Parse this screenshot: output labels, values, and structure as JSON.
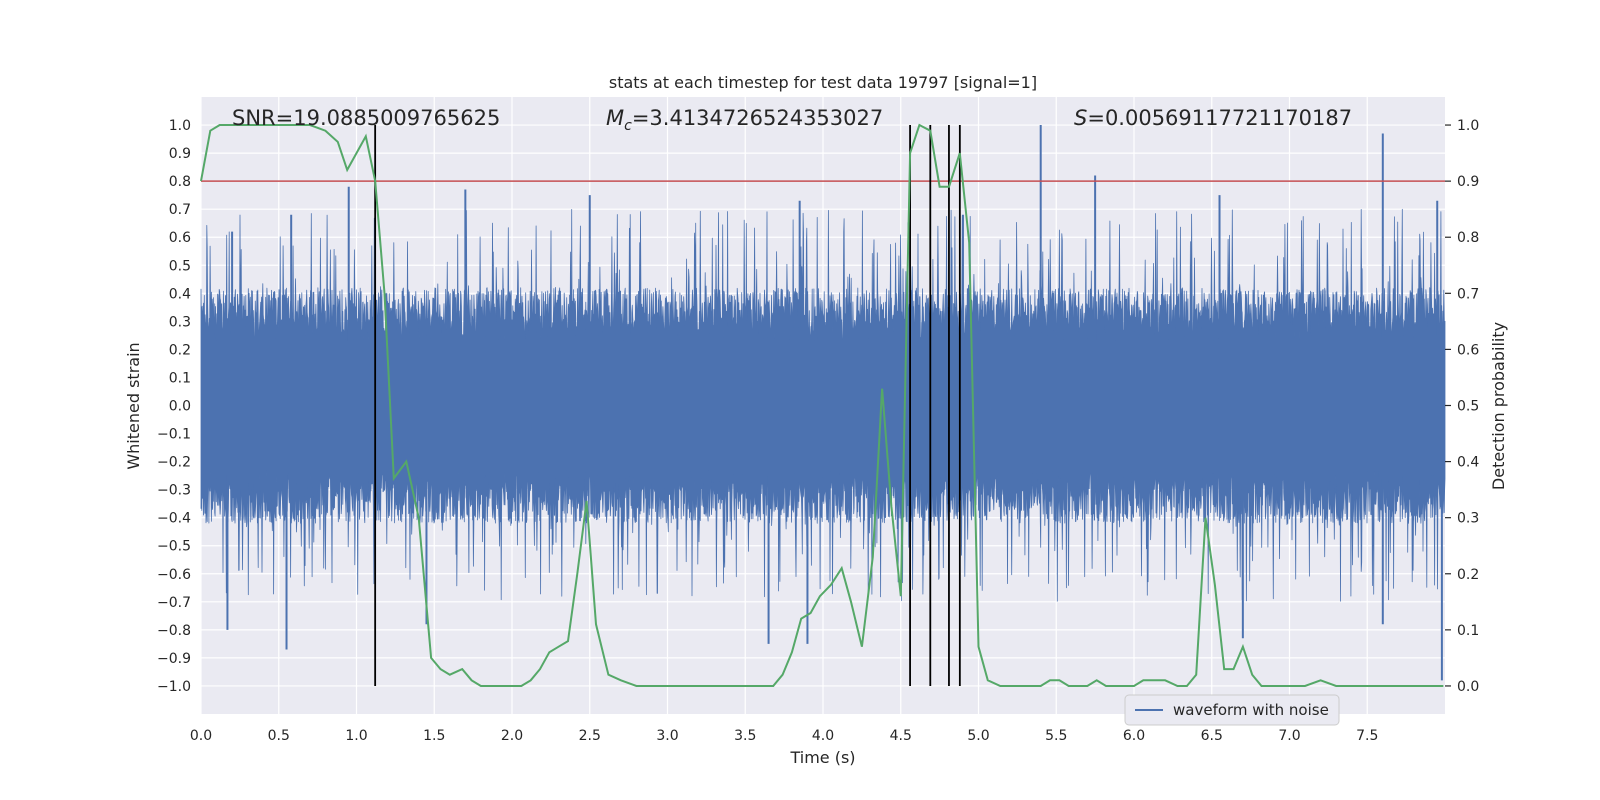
{
  "chart_data": {
    "type": "line",
    "title": "stats at each timestep for test data 19797 [signal=1]",
    "xlabel": "Time (s)",
    "ylabel": "Whitened strain",
    "y2label": "Detection probability",
    "xlim": [
      0.0,
      8.0
    ],
    "ylim": [
      -1.1,
      1.1
    ],
    "y2lim": [
      -0.05,
      1.05
    ],
    "xticks": [
      0.0,
      0.5,
      1.0,
      1.5,
      2.0,
      2.5,
      3.0,
      3.5,
      4.0,
      4.5,
      5.0,
      5.5,
      6.0,
      6.5,
      7.0,
      7.5
    ],
    "xtick_labels": [
      "0.0",
      "0.5",
      "1.0",
      "1.5",
      "2.0",
      "2.5",
      "3.0",
      "3.5",
      "4.0",
      "4.5",
      "5.0",
      "5.5",
      "6.0",
      "6.5",
      "7.0",
      "7.5"
    ],
    "yticks": [
      -1.0,
      -0.9,
      -0.8,
      -0.7,
      -0.6,
      -0.5,
      -0.4,
      -0.3,
      -0.2,
      -0.1,
      0.0,
      0.1,
      0.2,
      0.3,
      0.4,
      0.5,
      0.6,
      0.7,
      0.8,
      0.9,
      1.0
    ],
    "ytick_labels": [
      "−1.0",
      "−0.9",
      "−0.8",
      "−0.7",
      "−0.6",
      "−0.5",
      "−0.4",
      "−0.3",
      "−0.2",
      "−0.1",
      "0.0",
      "0.1",
      "0.2",
      "0.3",
      "0.4",
      "0.5",
      "0.6",
      "0.7",
      "0.8",
      "0.9",
      "1.0"
    ],
    "y2ticks": [
      0.0,
      0.1,
      0.2,
      0.3,
      0.4,
      0.5,
      0.6,
      0.7,
      0.8,
      0.9,
      1.0
    ],
    "y2tick_labels": [
      "0.0",
      "0.1",
      "0.2",
      "0.3",
      "0.4",
      "0.5",
      "0.6",
      "0.7",
      "0.8",
      "0.9",
      "1.0"
    ],
    "grid": true,
    "annotations": {
      "snr": "SNR=19.0885009765625",
      "mc_symbol": "M",
      "mc_sub": "c",
      "mc_value": "=3.4134726524353027",
      "s_symbol": "S",
      "s_value": "=0.00569117721170187"
    },
    "threshold": {
      "axis": "y2",
      "value": 0.9,
      "color": "#c44e52"
    },
    "vertical_lines": [
      1.12,
      4.56,
      4.69,
      4.81,
      4.88
    ],
    "legend": {
      "entries": [
        "waveform with noise"
      ],
      "position": "lower-right"
    },
    "series": [
      {
        "name": "waveform with noise",
        "axis": "y",
        "color": "#4c72b0",
        "kind": "noisy-envelope",
        "typical_amplitude": 0.42,
        "peak_events": [
          {
            "x": 0.2,
            "y": 0.62
          },
          {
            "x": 0.58,
            "y": 0.68
          },
          {
            "x": 0.95,
            "y": 0.78
          },
          {
            "x": 1.7,
            "y": 0.77
          },
          {
            "x": 2.5,
            "y": 0.75
          },
          {
            "x": 3.85,
            "y": 0.73
          },
          {
            "x": 4.9,
            "y": 0.68
          },
          {
            "x": 5.4,
            "y": 1.0
          },
          {
            "x": 5.75,
            "y": 0.82
          },
          {
            "x": 6.55,
            "y": 0.75
          },
          {
            "x": 7.6,
            "y": 0.97
          },
          {
            "x": 7.95,
            "y": 0.73
          },
          {
            "x": 0.17,
            "y": -0.8
          },
          {
            "x": 0.55,
            "y": -0.87
          },
          {
            "x": 1.45,
            "y": -0.78
          },
          {
            "x": 3.65,
            "y": -0.85
          },
          {
            "x": 3.9,
            "y": -0.85
          },
          {
            "x": 6.7,
            "y": -0.83
          },
          {
            "x": 7.6,
            "y": -0.78
          },
          {
            "x": 7.98,
            "y": -0.98
          }
        ]
      },
      {
        "name": "detection probability",
        "axis": "y2",
        "color": "#55a868",
        "x": [
          0.0,
          0.06,
          0.12,
          0.2,
          0.3,
          0.4,
          0.5,
          0.6,
          0.7,
          0.8,
          0.88,
          0.94,
          1.0,
          1.06,
          1.12,
          1.18,
          1.24,
          1.32,
          1.4,
          1.48,
          1.54,
          1.6,
          1.68,
          1.74,
          1.8,
          1.9,
          2.0,
          2.06,
          2.12,
          2.18,
          2.24,
          2.3,
          2.36,
          2.42,
          2.48,
          2.54,
          2.62,
          2.7,
          2.8,
          2.9,
          3.0,
          3.1,
          3.2,
          3.3,
          3.4,
          3.5,
          3.6,
          3.68,
          3.74,
          3.8,
          3.86,
          3.92,
          3.98,
          4.05,
          4.12,
          4.18,
          4.25,
          4.32,
          4.38,
          4.44,
          4.5,
          4.56,
          4.62,
          4.69,
          4.75,
          4.81,
          4.88,
          4.94,
          5.0,
          5.06,
          5.14,
          5.22,
          5.3,
          5.4,
          5.46,
          5.52,
          5.58,
          5.64,
          5.7,
          5.76,
          5.82,
          5.9,
          6.0,
          6.06,
          6.12,
          6.2,
          6.28,
          6.34,
          6.4,
          6.46,
          6.52,
          6.58,
          6.64,
          6.7,
          6.76,
          6.82,
          6.9,
          7.0,
          7.1,
          7.2,
          7.3,
          7.4,
          7.5,
          7.6,
          7.7,
          7.8,
          7.9,
          7.99
        ],
        "values": [
          0.9,
          0.99,
          1.0,
          1.0,
          1.0,
          1.0,
          1.0,
          1.0,
          1.0,
          0.99,
          0.97,
          0.92,
          0.95,
          0.98,
          0.9,
          0.7,
          0.37,
          0.4,
          0.3,
          0.05,
          0.03,
          0.02,
          0.03,
          0.01,
          0.0,
          0.0,
          0.0,
          0.0,
          0.01,
          0.03,
          0.06,
          0.07,
          0.08,
          0.2,
          0.33,
          0.11,
          0.02,
          0.01,
          0.0,
          0.0,
          0.0,
          0.0,
          0.0,
          0.0,
          0.0,
          0.0,
          0.0,
          0.0,
          0.02,
          0.06,
          0.12,
          0.13,
          0.16,
          0.18,
          0.21,
          0.15,
          0.07,
          0.23,
          0.53,
          0.32,
          0.16,
          0.95,
          1.0,
          0.99,
          0.89,
          0.89,
          0.95,
          0.79,
          0.07,
          0.01,
          0.0,
          0.0,
          0.0,
          0.0,
          0.01,
          0.01,
          0.0,
          0.0,
          0.0,
          0.01,
          0.0,
          0.0,
          0.0,
          0.01,
          0.01,
          0.01,
          0.0,
          0.0,
          0.02,
          0.3,
          0.18,
          0.03,
          0.03,
          0.07,
          0.02,
          0.0,
          0.0,
          0.0,
          0.0,
          0.01,
          0.0,
          0.0,
          0.0,
          0.0,
          0.0,
          0.0,
          0.0,
          0.0
        ]
      }
    ]
  }
}
